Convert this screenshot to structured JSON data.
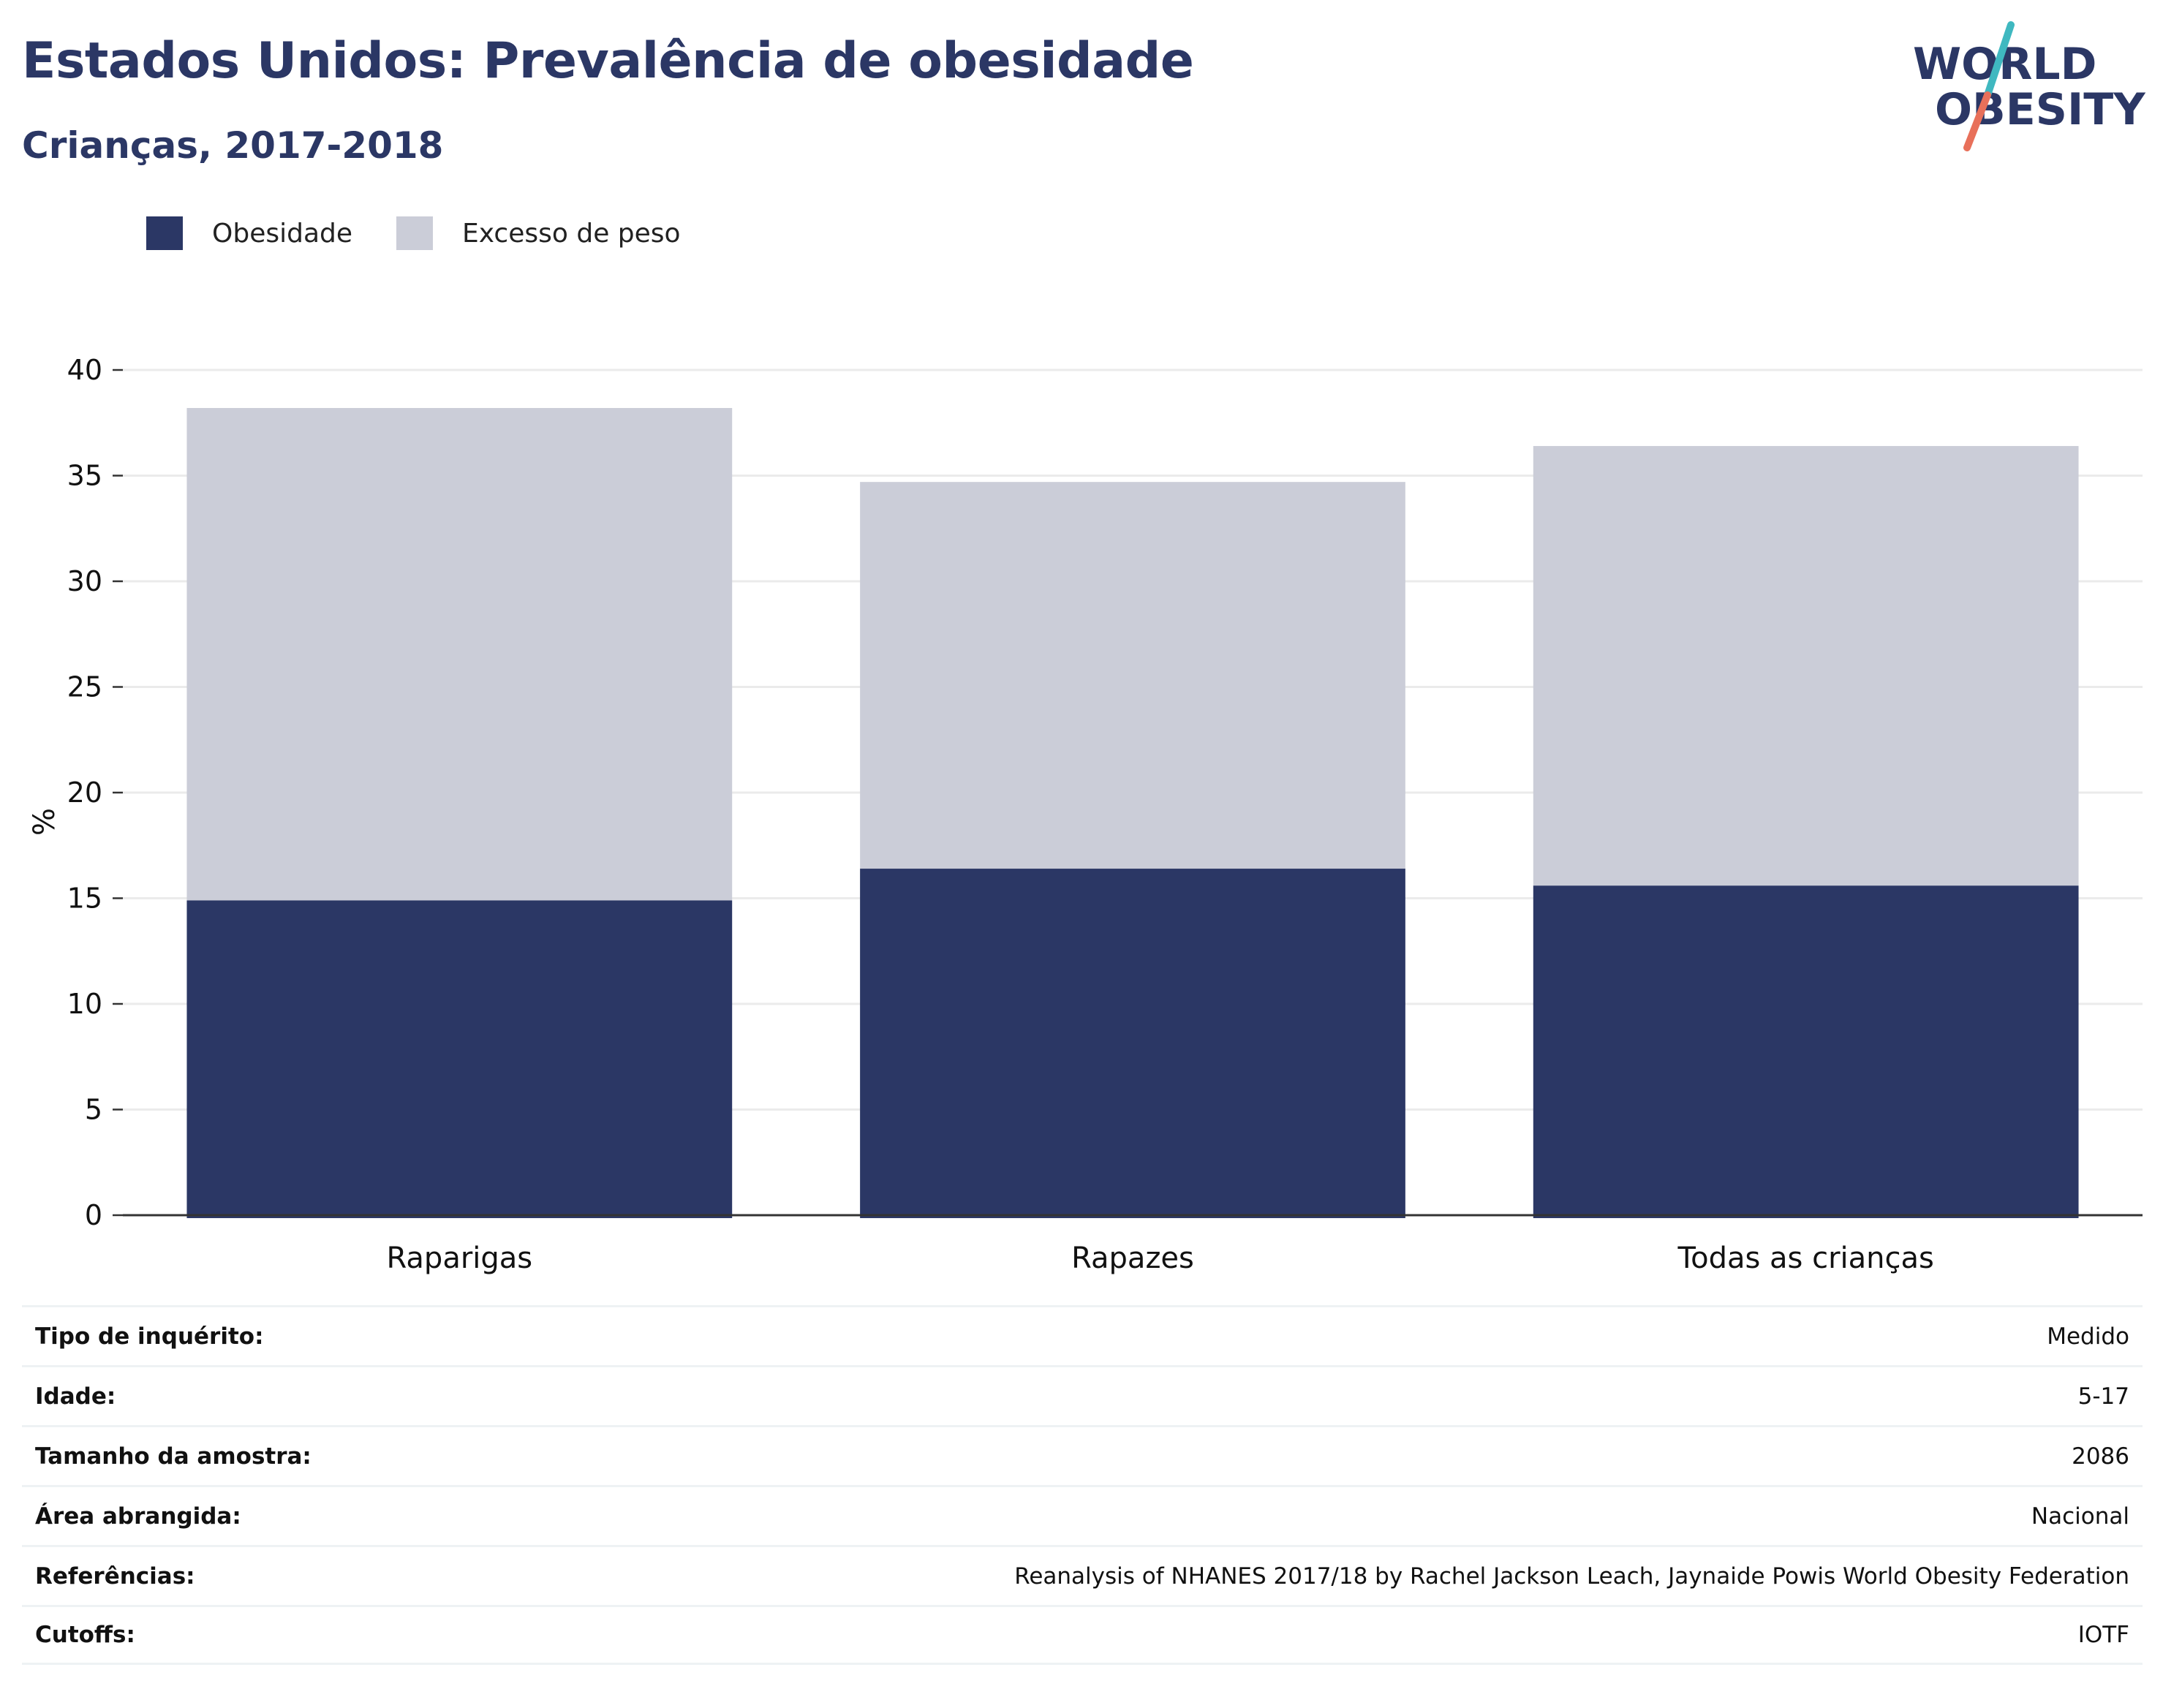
{
  "title": "Estados Unidos: Prevalência de obesidade",
  "subtitle": "Crianças, 2017-2018",
  "logo": {
    "line1": "WORLD",
    "line2": "OBESITY",
    "colors": {
      "text": "#2b3765",
      "slash_top": "#3fb8c0",
      "slash_bottom": "#e8705a"
    }
  },
  "legend": [
    {
      "label": "Obesidade",
      "color": "#2b3765"
    },
    {
      "label": "Excesso de peso",
      "color": "#cbcdd8"
    }
  ],
  "chart_data": {
    "type": "bar",
    "stacked": true,
    "categories": [
      "Raparigas",
      "Rapazes",
      "Todas as crianças"
    ],
    "series": [
      {
        "name": "Obesidade",
        "color": "#2b3765",
        "values": [
          14.9,
          16.4,
          15.6
        ]
      },
      {
        "name": "Excesso de peso",
        "color": "#cbcdd8",
        "values": [
          23.3,
          18.3,
          20.8
        ]
      }
    ],
    "ylabel": "%",
    "ylim": [
      0,
      40
    ],
    "yticks": [
      0,
      5,
      10,
      15,
      20,
      25,
      30,
      35,
      40
    ],
    "grid": true
  },
  "info": [
    {
      "label": "Tipo de inquérito:",
      "value": "Medido"
    },
    {
      "label": "Idade:",
      "value": "5-17"
    },
    {
      "label": "Tamanho da amostra:",
      "value": "2086"
    },
    {
      "label": "Área abrangida:",
      "value": "Nacional"
    },
    {
      "label": "Referências:",
      "value": "Reanalysis of NHANES 2017/18 by Rachel Jackson Leach, Jaynaide Powis World Obesity Federation"
    },
    {
      "label": "Cutoffs:",
      "value": "IOTF"
    }
  ]
}
